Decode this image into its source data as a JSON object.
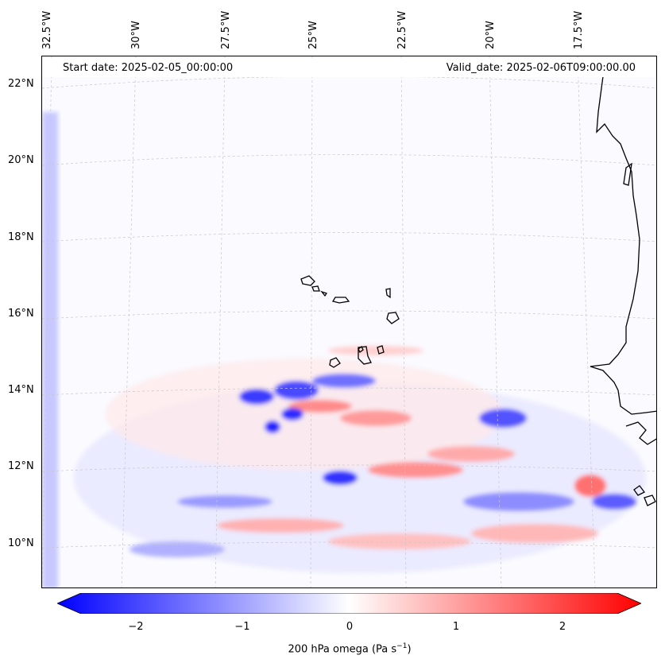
{
  "map": {
    "longitude_labels": [
      "32.5°W",
      "30°W",
      "27.5°W",
      "25°W",
      "22.5°W",
      "20°W",
      "17.5°W"
    ],
    "latitude_labels": [
      "22°N",
      "20°N",
      "18°N",
      "16°N",
      "14°N",
      "12°N",
      "10°N"
    ],
    "start_date": "Start date: 2025-02-05_00:00:00",
    "valid_date": "Valid_date: 2025-02-06T09:00:00.00",
    "field_colors": {
      "negative": "#0000ff",
      "zero": "#ffffff",
      "positive": "#ff0000",
      "coast": "#000000"
    }
  },
  "colorbar": {
    "ticks": [
      "−2",
      "−1",
      "0",
      "1",
      "2"
    ],
    "tick_values": [
      -2,
      -1,
      0,
      1,
      2
    ],
    "range": [
      -2.5,
      2.5
    ],
    "label_prefix": "200 hPa omega (Pa s",
    "label_exponent": "−1",
    "label_suffix": ")"
  }
}
